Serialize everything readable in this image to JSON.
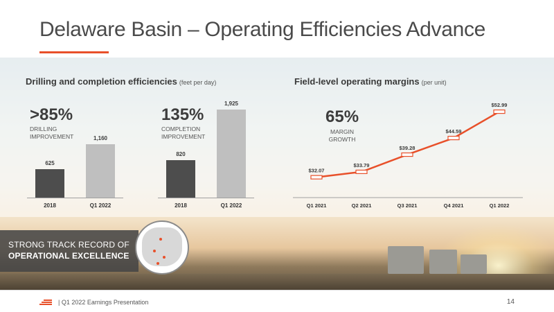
{
  "slide": {
    "title": "Delaware Basin – Operating Efficiencies Advance",
    "footer": "|   Q1 2022 Earnings Presentation",
    "page_number": "14",
    "accent_color": "#e8502a"
  },
  "drilling_panel": {
    "title": "Drilling and completion efficiencies",
    "unit": "(feet per day)",
    "drilling": {
      "headline": ">85%",
      "line1": "DRILLING",
      "line2": "IMPROVEMENT"
    },
    "completion": {
      "headline": "135%",
      "line1": "COMPLETION",
      "line2": "IMPROVEMENT"
    }
  },
  "margins_panel": {
    "title": "Field-level operating margins",
    "unit": "(per unit)",
    "headline": "65%",
    "line1": "MARGIN",
    "line2": "GROWTH"
  },
  "callout": {
    "line1": "STRONG TRACK RECORD OF",
    "line2": "OPERATIONAL EXCELLENCE"
  },
  "chart_data": [
    {
      "type": "bar",
      "title": "Drilling and completion efficiencies",
      "categories": [
        "2018",
        "Q1 2022"
      ],
      "values": [
        625,
        1160
      ],
      "labels": [
        "625",
        "1,160"
      ],
      "colors": [
        "#4d4d4d",
        "#bfbfbf"
      ],
      "ylim": [
        0,
        1925
      ]
    },
    {
      "type": "bar",
      "categories": [
        "2018",
        "Q1 2022"
      ],
      "values": [
        820,
        1925
      ],
      "labels": [
        "820",
        "1,925"
      ],
      "colors": [
        "#4d4d4d",
        "#bfbfbf"
      ],
      "ylim": [
        0,
        1925
      ]
    },
    {
      "type": "line",
      "title": "Field-level operating margins",
      "categories": [
        "Q1 2021",
        "Q2 2021",
        "Q3 2021",
        "Q4 2021",
        "Q1 2022"
      ],
      "values": [
        32.07,
        33.79,
        39.28,
        44.59,
        52.99
      ],
      "labels": [
        "$32.07",
        "$33.79",
        "$39.28",
        "$44.59",
        "$52.99"
      ],
      "line_color": "#e8502a",
      "grid": false
    }
  ]
}
